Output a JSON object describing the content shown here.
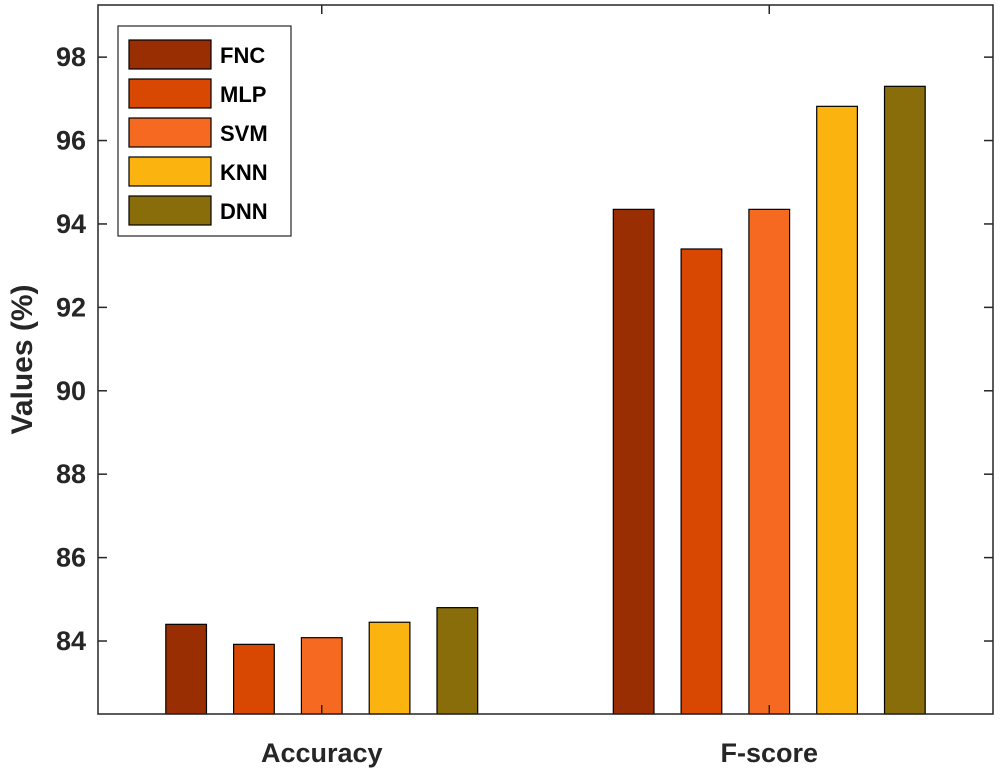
{
  "chart_data": {
    "type": "bar",
    "categories": [
      "Accuracy",
      "F-score"
    ],
    "series": [
      {
        "name": "FNC",
        "color": "#992e03",
        "values": [
          84.4,
          94.35
        ]
      },
      {
        "name": "MLP",
        "color": "#d94803",
        "values": [
          83.92,
          93.4
        ]
      },
      {
        "name": "SVM",
        "color": "#f56a20",
        "values": [
          84.08,
          94.35
        ]
      },
      {
        "name": "KNN",
        "color": "#fbb40f",
        "values": [
          84.45,
          96.82
        ]
      },
      {
        "name": "DNN",
        "color": "#8a6d0b",
        "values": [
          84.8,
          97.3
        ]
      }
    ],
    "ylabel": "Values (%)",
    "xlabel": "",
    "ylim": [
      82.25,
      99.25
    ],
    "yticks": [
      84,
      86,
      88,
      90,
      92,
      94,
      96,
      98
    ],
    "grid": false,
    "legend_position": "top-left"
  }
}
